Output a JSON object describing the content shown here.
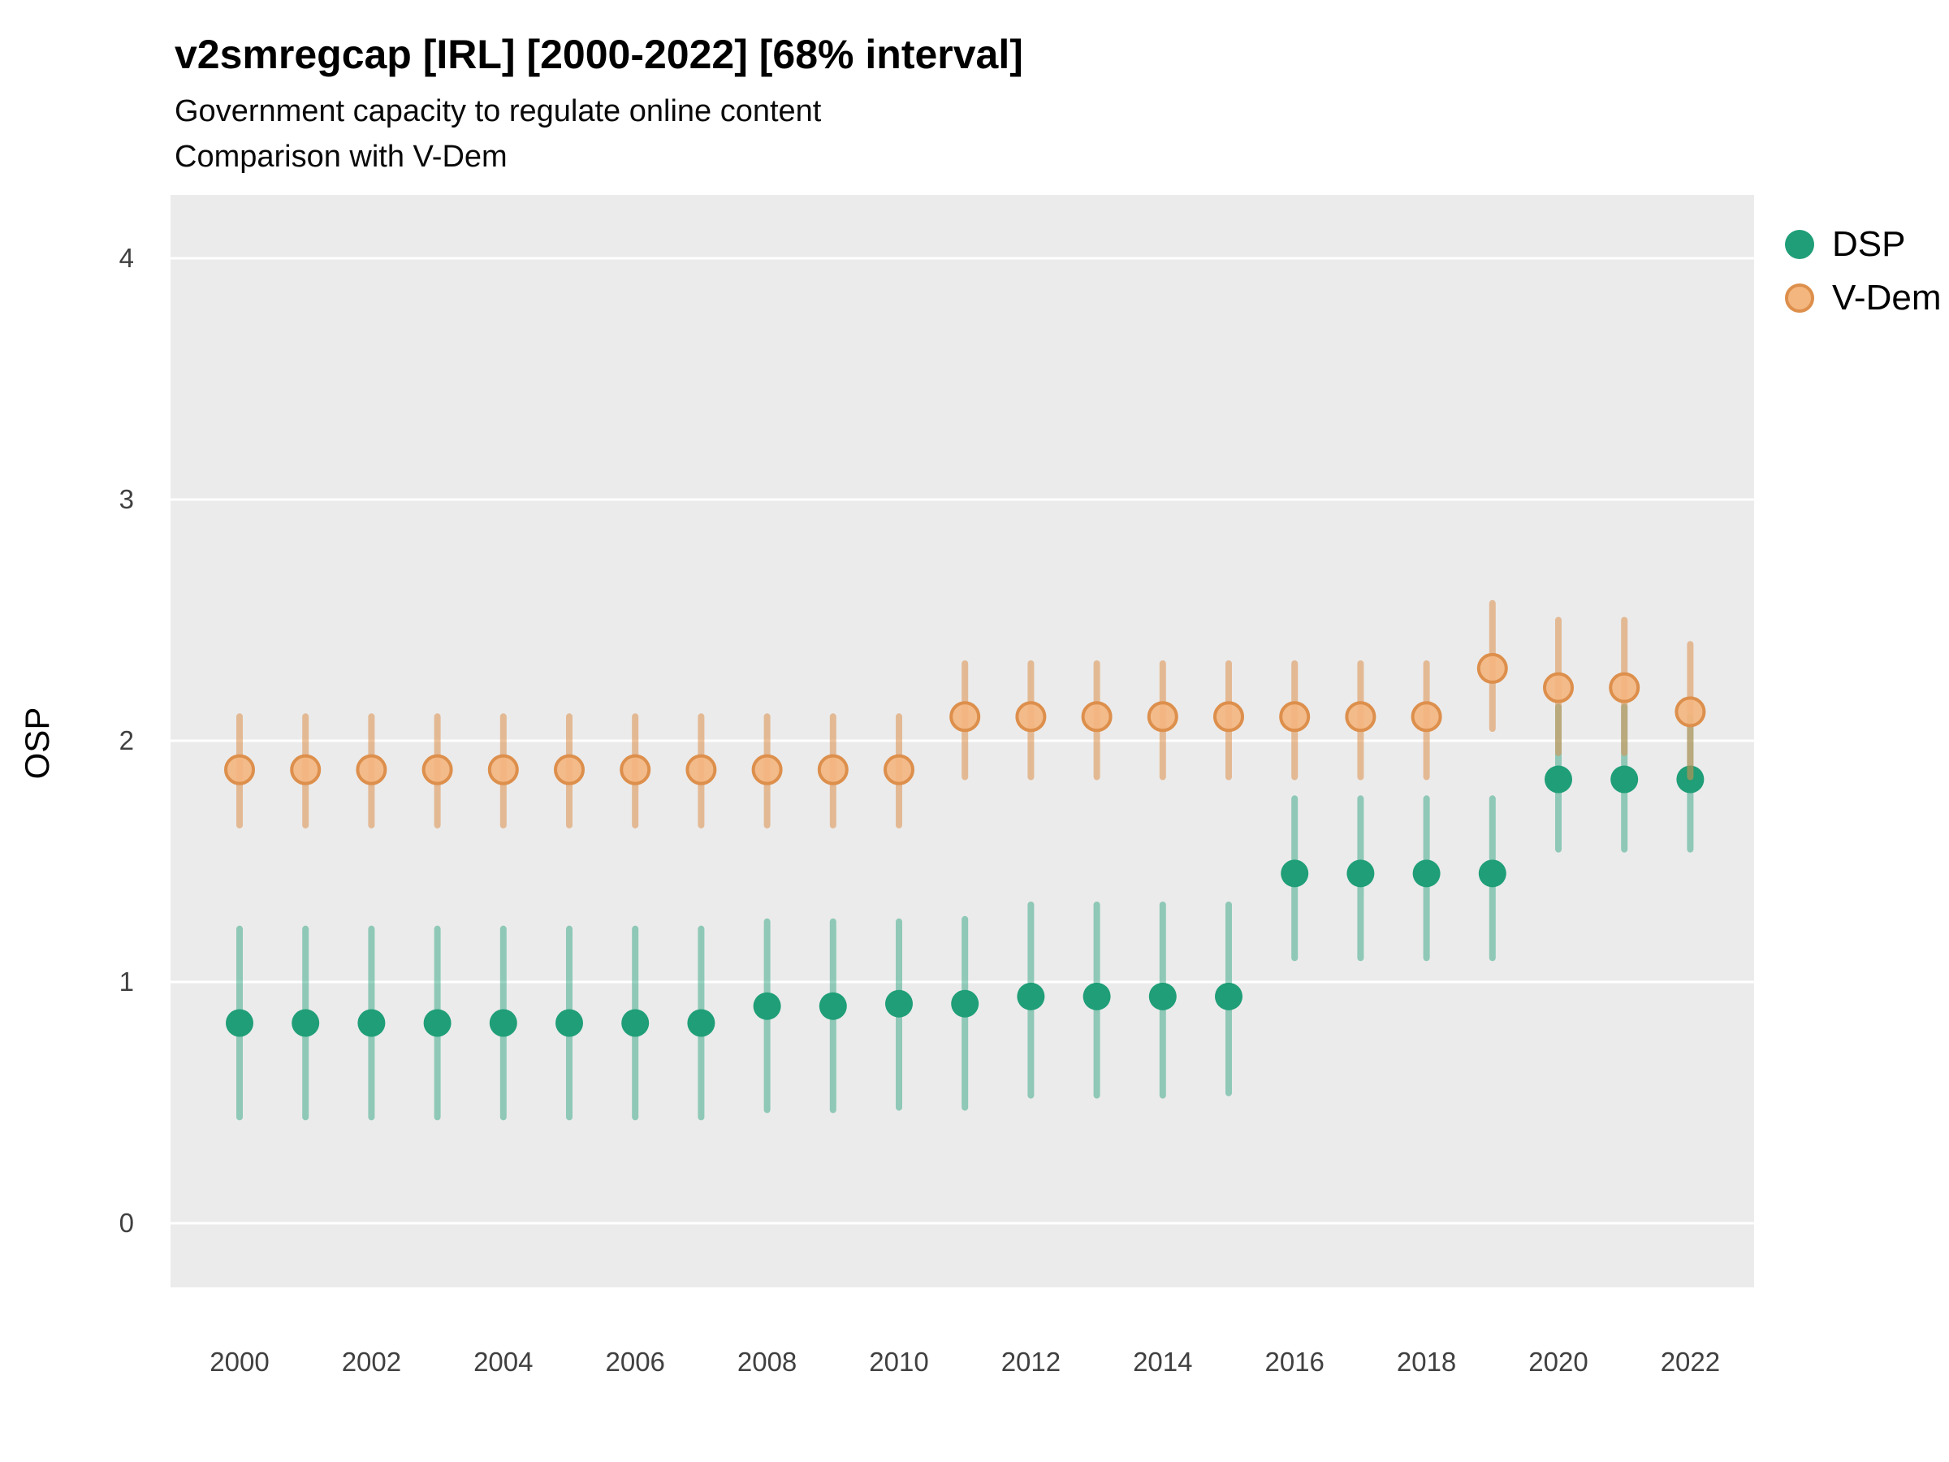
{
  "title": "v2smregcap [IRL] [2000-2022] [68% interval]",
  "subtitle1": "Government capacity to regulate online content",
  "subtitle2": "Comparison with V-Dem",
  "ylabel": "OSP",
  "legend": [
    {
      "label": "DSP",
      "marker_color": "#1f9e77"
    },
    {
      "label": "V-Dem",
      "marker_fill": "#f4b67f",
      "marker_stroke": "#dd8f4c"
    }
  ],
  "chart_data": {
    "type": "scatter",
    "title": "v2smregcap [IRL] [2000-2022] [68% interval]",
    "subtitle": [
      "Government capacity to regulate online content",
      "Comparison with V-Dem"
    ],
    "xlabel": "",
    "ylabel": "OSP",
    "ylim": [
      -0.3,
      4.25
    ],
    "grid": "major-horizontal-white-on-gray",
    "legend_position": "right-top",
    "panel_bg": "#EBEBEB",
    "gridline_color": "#FFFFFF",
    "x": [
      2000,
      2001,
      2002,
      2003,
      2004,
      2005,
      2006,
      2007,
      2008,
      2009,
      2010,
      2011,
      2012,
      2013,
      2014,
      2015,
      2016,
      2017,
      2018,
      2019,
      2020,
      2021,
      2022
    ],
    "x_ticks": [
      2000,
      2002,
      2004,
      2006,
      2008,
      2010,
      2012,
      2014,
      2016,
      2018,
      2020,
      2022
    ],
    "y_ticks": [
      0,
      1,
      2,
      3,
      4
    ],
    "interval": "68%",
    "series": [
      {
        "name": "DSP",
        "point_fill": "#1f9e77",
        "point_stroke": "",
        "point_opacity": 1,
        "bar_color": "rgba(31,158,119,0.45)",
        "values": [
          0.83,
          0.83,
          0.83,
          0.83,
          0.83,
          0.83,
          0.83,
          0.83,
          0.9,
          0.9,
          0.91,
          0.91,
          0.94,
          0.94,
          0.94,
          0.94,
          1.45,
          1.45,
          1.45,
          1.45,
          1.84,
          1.84,
          1.84
        ],
        "lower": [
          0.44,
          0.44,
          0.44,
          0.44,
          0.44,
          0.44,
          0.44,
          0.44,
          0.47,
          0.47,
          0.48,
          0.48,
          0.53,
          0.53,
          0.53,
          0.54,
          1.1,
          1.1,
          1.1,
          1.1,
          1.55,
          1.55,
          1.55
        ],
        "upper": [
          1.22,
          1.22,
          1.22,
          1.22,
          1.22,
          1.22,
          1.22,
          1.22,
          1.25,
          1.25,
          1.25,
          1.26,
          1.32,
          1.32,
          1.32,
          1.32,
          1.76,
          1.76,
          1.76,
          1.76,
          2.14,
          2.14,
          2.1
        ]
      },
      {
        "name": "V-Dem",
        "point_fill": "#f4b67f",
        "point_stroke": "#dd8f4c",
        "point_opacity": 0.9,
        "bar_color": "rgba(221,143,76,0.55)",
        "values": [
          1.88,
          1.88,
          1.88,
          1.88,
          1.88,
          1.88,
          1.88,
          1.88,
          1.88,
          1.88,
          1.88,
          2.1,
          2.1,
          2.1,
          2.1,
          2.1,
          2.1,
          2.1,
          2.1,
          2.3,
          2.22,
          2.22,
          2.12
        ],
        "lower": [
          1.65,
          1.65,
          1.65,
          1.65,
          1.65,
          1.65,
          1.65,
          1.65,
          1.65,
          1.65,
          1.65,
          1.85,
          1.85,
          1.85,
          1.85,
          1.85,
          1.85,
          1.85,
          1.85,
          2.05,
          1.95,
          1.95,
          1.85
        ],
        "upper": [
          2.1,
          2.1,
          2.1,
          2.1,
          2.1,
          2.1,
          2.1,
          2.1,
          2.1,
          2.1,
          2.1,
          2.32,
          2.32,
          2.32,
          2.32,
          2.32,
          2.32,
          2.32,
          2.32,
          2.57,
          2.5,
          2.5,
          2.4
        ]
      }
    ]
  }
}
